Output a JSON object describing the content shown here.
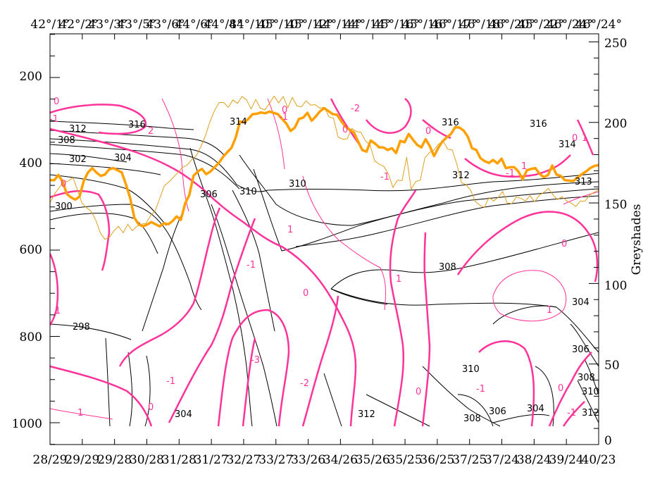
{
  "chart_data": {
    "type": "contour",
    "y_left_ticks": [
      "200",
      "400",
      "600",
      "800",
      "1000"
    ],
    "y_right_ticks": [
      "0",
      "50",
      "100",
      "150",
      "200",
      "250"
    ],
    "y_right_label": "Greyshades",
    "x_top_ticks": [
      "42°/1°",
      "42°/2°",
      "43°/3°",
      "43°/5°",
      "43°/6°",
      "44°/6°",
      "44°/8°",
      "44°/10°",
      "45°/10°",
      "45°/12°",
      "44°/14°",
      "44°/14°",
      "45°/16°",
      "45°/16°",
      "46°/17°",
      "46°/18°",
      "46°/20°",
      "45°/22°",
      "46°/24°",
      "46°/24°"
    ],
    "x_bottom_ticks": [
      "28/29",
      "29/29",
      "29/28",
      "30/28",
      "31/28",
      "31/27",
      "32/27",
      "33/27",
      "33/26",
      "34/26",
      "35/26",
      "35/25",
      "36/25",
      "37/25",
      "37/24",
      "38/24",
      "39/24",
      "40/23"
    ],
    "ylim_left": [
      1050,
      100
    ],
    "ylim_right": [
      0,
      255
    ],
    "contour_labels_black": [
      "316",
      "312",
      "308",
      "302",
      "304",
      "300",
      "298",
      "306",
      "310",
      "314",
      "316",
      "316",
      "314",
      "312",
      "313",
      "310",
      "308",
      "304",
      "306",
      "308",
      "310",
      "312",
      "304",
      "308",
      "306",
      "310",
      "312",
      "304"
    ],
    "contour_labels_magenta": [
      "0",
      "-1",
      "0",
      "1",
      "2",
      "-1",
      "1",
      "-1",
      "0",
      "-2",
      "0",
      "-1",
      "0",
      "1",
      "-3",
      "-2",
      "0",
      "-1",
      "0",
      "1",
      "0",
      "1",
      "-1",
      "0",
      "-1",
      "0",
      "1",
      "1",
      "-1",
      "0"
    ],
    "series": [
      {
        "values": [
          438,
          438,
          426,
          442,
          470,
          478,
          483,
          476,
          440,
          420,
          410,
          420,
          428,
          425,
          413,
          410,
          415,
          420,
          448,
          480,
          525,
          540,
          545,
          541,
          535,
          540,
          545,
          538,
          540,
          533,
          522,
          530,
          492,
          473,
          428,
          418,
          412,
          424,
          418,
          408,
          398,
          384,
          373,
          363,
          339,
          302,
          304,
          296,
          285,
          284,
          281,
          283,
          279,
          282,
          285,
          296,
          307,
          324,
          316,
          296,
          293,
          282,
          300,
          290,
          278,
          271,
          278,
          285,
          286,
          301,
          314,
          321,
          327,
          348,
          368,
          372,
          346,
          353,
          362,
          362,
          368,
          364,
          375,
          347,
          350,
          331,
          344,
          356,
          362,
          343,
          359,
          382,
          363,
          348,
          339,
          331,
          315,
          316,
          323,
          337,
          364,
          368,
          387,
          394,
          398,
          391,
          399,
          388,
          410,
          408,
          408,
          418,
          436,
          415,
          412,
          410,
          423,
          431,
          426,
          404,
          425,
          428,
          438,
          439,
          440,
          432,
          424,
          418,
          410,
          405,
          403
        ]
      },
      {
        "values": [
          490,
          470,
          455,
          442,
          440,
          432,
          460,
          491,
          502,
          510,
          530,
          560,
          575,
          570,
          555,
          545,
          560,
          540,
          555,
          545,
          540,
          538,
          520,
          509,
          480,
          451,
          442,
          431,
          420,
          408,
          403,
          390,
          381,
          360,
          335,
          302,
          276,
          258,
          258,
          269,
          252,
          260,
          244,
          252,
          273,
          251,
          271,
          275,
          260,
          243,
          259,
          244,
          270,
          246,
          266,
          268,
          254,
          264,
          263,
          271,
          269,
          291,
          294,
          338,
          343,
          342,
          318,
          325,
          327,
          347,
          356,
          393,
          401,
          406,
          423,
          455,
          438,
          439,
          385,
          459,
          441,
          438,
          386,
          374,
          368,
          354,
          348,
          366,
          368,
          402,
          444,
          448,
          461,
          487,
          496,
          501,
          478,
          486,
          478,
          464,
          491,
          492,
          477,
          480,
          486,
          474,
          488,
          473,
          466,
          457,
          472,
          483,
          476,
          486,
          491,
          499,
          486,
          487,
          473,
          466,
          460
        ]
      }
    ]
  }
}
